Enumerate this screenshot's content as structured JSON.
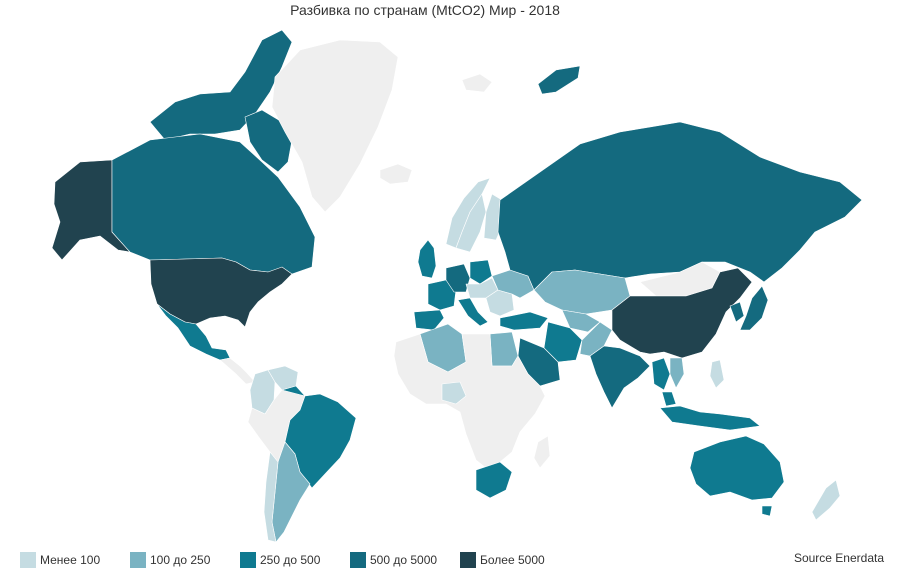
{
  "title": "Разбивка по странам (MtCO2) Мир - 2018",
  "source": "Source Enerdata",
  "colors": {
    "no_data": "#efefef",
    "c1": "#c5dce2",
    "c2": "#7ab3c2",
    "c3": "#0f7a90",
    "c4": "#146a7f",
    "c5": "#21434f",
    "border": "#ffffff"
  },
  "legend": [
    {
      "label": "Менее 100",
      "color_key": "c1"
    },
    {
      "label": "100 до 250",
      "color_key": "c2"
    },
    {
      "label": "250 до 500",
      "color_key": "c3"
    },
    {
      "label": "500 до 5000",
      "color_key": "c4"
    },
    {
      "label": "Более 5000",
      "color_key": "c5"
    }
  ],
  "regions": [
    {
      "name": "Alaska (USA)",
      "class": "c5"
    },
    {
      "name": "Canada",
      "class": "c4"
    },
    {
      "name": "Greenland",
      "class": "no_data"
    },
    {
      "name": "USA",
      "class": "c5"
    },
    {
      "name": "Mexico",
      "class": "c3"
    },
    {
      "name": "Central America",
      "class": "no_data"
    },
    {
      "name": "Venezuela",
      "class": "c1"
    },
    {
      "name": "Colombia",
      "class": "c1"
    },
    {
      "name": "Brazil",
      "class": "c3"
    },
    {
      "name": "Argentina",
      "class": "c2"
    },
    {
      "name": "Chile",
      "class": "c1"
    },
    {
      "name": "South America other",
      "class": "no_data"
    },
    {
      "name": "Iceland",
      "class": "no_data"
    },
    {
      "name": "Norway",
      "class": "c1"
    },
    {
      "name": "Sweden",
      "class": "c1"
    },
    {
      "name": "Finland",
      "class": "c1"
    },
    {
      "name": "United Kingdom",
      "class": "c3"
    },
    {
      "name": "France",
      "class": "c3"
    },
    {
      "name": "Spain",
      "class": "c3"
    },
    {
      "name": "Italy",
      "class": "c3"
    },
    {
      "name": "Germany",
      "class": "c4"
    },
    {
      "name": "Poland",
      "class": "c3"
    },
    {
      "name": "Central Europe",
      "class": "c1"
    },
    {
      "name": "Romania",
      "class": "c1"
    },
    {
      "name": "Ukraine",
      "class": "c2"
    },
    {
      "name": "Russia",
      "class": "c4"
    },
    {
      "name": "Kazakhstan",
      "class": "c2"
    },
    {
      "name": "Uzbekistan",
      "class": "c2"
    },
    {
      "name": "Turkey",
      "class": "c3"
    },
    {
      "name": "Iran",
      "class": "c3"
    },
    {
      "name": "Saudi Arabia",
      "class": "c4"
    },
    {
      "name": "Egypt",
      "class": "c2"
    },
    {
      "name": "Algeria",
      "class": "c2"
    },
    {
      "name": "Africa other",
      "class": "no_data"
    },
    {
      "name": "Nigeria",
      "class": "c1"
    },
    {
      "name": "South Africa",
      "class": "c3"
    },
    {
      "name": "Pakistan",
      "class": "c2"
    },
    {
      "name": "India",
      "class": "c4"
    },
    {
      "name": "Mongolia",
      "class": "no_data"
    },
    {
      "name": "China",
      "class": "c5"
    },
    {
      "name": "Japan",
      "class": "c4"
    },
    {
      "name": "South Korea",
      "class": "c4"
    },
    {
      "name": "Thailand",
      "class": "c3"
    },
    {
      "name": "Vietnam",
      "class": "c2"
    },
    {
      "name": "Malaysia",
      "class": "c3"
    },
    {
      "name": "Indonesia",
      "class": "c3"
    },
    {
      "name": "Philippines",
      "class": "c1"
    },
    {
      "name": "Australia",
      "class": "c3"
    },
    {
      "name": "New Zealand",
      "class": "c1"
    },
    {
      "name": "Arctic islands (Canada)",
      "class": "c4"
    },
    {
      "name": "Svalbard",
      "class": "no_data"
    },
    {
      "name": "Novaya Zemlya",
      "class": "c4"
    }
  ]
}
